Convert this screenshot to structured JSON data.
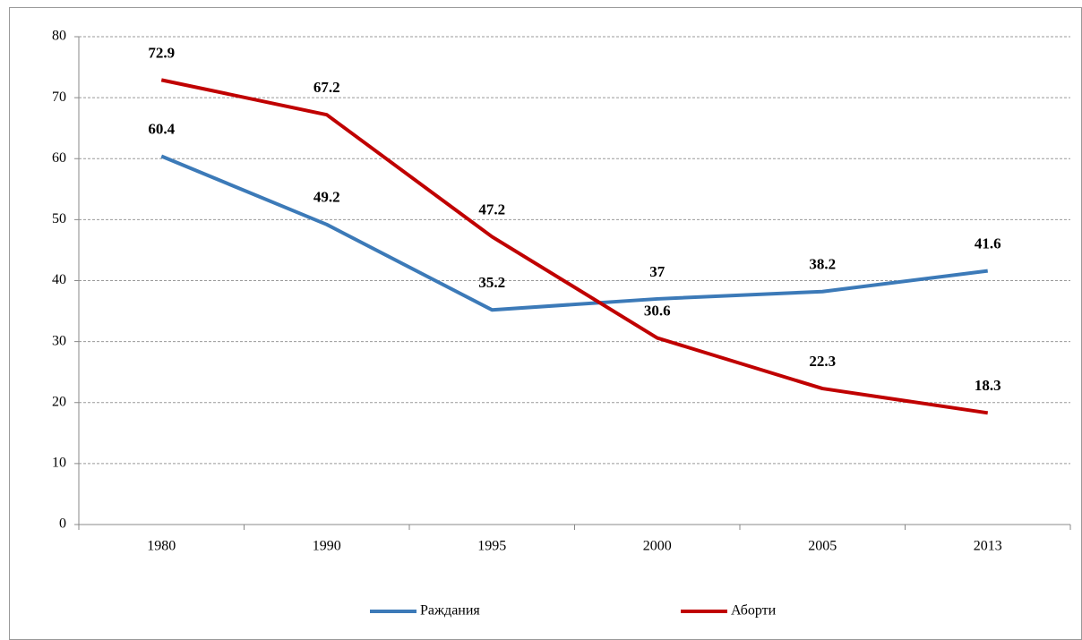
{
  "chart_data": {
    "type": "line",
    "categories": [
      "1980",
      "1990",
      "1995",
      "2000",
      "2005",
      "2013"
    ],
    "series": [
      {
        "name": "Раждания",
        "color": "#3c7ab8",
        "values": [
          60.4,
          49.2,
          35.2,
          37,
          38.2,
          41.6
        ]
      },
      {
        "name": "Аборти",
        "color": "#c00000",
        "values": [
          72.9,
          67.2,
          47.2,
          30.6,
          22.3,
          18.3
        ]
      }
    ],
    "ylim": [
      0,
      80
    ],
    "yticks": [
      0,
      10,
      20,
      30,
      40,
      50,
      60,
      70,
      80
    ],
    "grid": true,
    "legend": "bottom"
  }
}
